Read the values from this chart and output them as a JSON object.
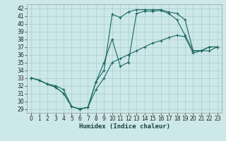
{
  "xlabel": "Humidex (Indice chaleur)",
  "background_color": "#cce8e8",
  "grid_color": "#aacccc",
  "line_color": "#1a6860",
  "xlim": [
    -0.5,
    23.5
  ],
  "ylim": [
    28.5,
    42.5
  ],
  "xticks": [
    0,
    1,
    2,
    3,
    4,
    5,
    6,
    7,
    8,
    9,
    10,
    11,
    12,
    13,
    14,
    15,
    16,
    17,
    18,
    19,
    20,
    21,
    22,
    23
  ],
  "yticks": [
    29,
    30,
    31,
    32,
    33,
    34,
    35,
    36,
    37,
    38,
    39,
    40,
    41,
    42
  ],
  "line1_x": [
    0,
    1,
    2,
    3,
    4,
    5,
    6,
    7,
    8,
    9,
    10,
    11,
    12,
    13,
    14,
    15,
    16,
    17,
    18,
    19,
    20,
    21,
    22,
    23
  ],
  "line1_y": [
    33.0,
    32.7,
    32.2,
    32.0,
    31.5,
    29.3,
    29.0,
    29.2,
    31.5,
    33.0,
    35.0,
    35.5,
    36.0,
    36.5,
    37.0,
    37.5,
    37.8,
    38.2,
    38.5,
    38.3,
    36.2,
    36.5,
    36.5,
    37.0
  ],
  "line2_x": [
    0,
    1,
    2,
    3,
    4,
    5,
    6,
    7,
    8,
    9,
    10,
    11,
    12,
    13,
    14,
    15,
    16,
    17,
    18,
    19,
    20,
    21,
    22,
    23
  ],
  "line2_y": [
    33.0,
    32.7,
    32.2,
    31.8,
    31.0,
    29.3,
    29.0,
    29.2,
    32.5,
    34.0,
    41.2,
    40.8,
    41.5,
    41.8,
    41.8,
    41.8,
    41.8,
    41.5,
    41.3,
    40.5,
    36.5,
    36.5,
    37.0,
    37.0
  ],
  "line3_x": [
    0,
    1,
    2,
    3,
    4,
    5,
    6,
    7,
    8,
    9,
    10,
    11,
    12,
    13,
    14,
    15,
    16,
    17,
    18,
    19,
    20,
    21,
    22,
    23
  ],
  "line3_y": [
    33.0,
    32.7,
    32.2,
    31.8,
    31.0,
    29.3,
    29.0,
    29.2,
    32.5,
    35.0,
    38.0,
    34.5,
    35.0,
    41.3,
    41.6,
    41.6,
    41.7,
    41.3,
    40.5,
    38.5,
    36.5,
    36.5,
    37.0,
    37.0
  ]
}
